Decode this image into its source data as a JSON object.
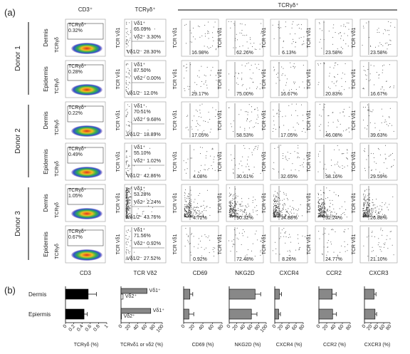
{
  "panel_labels": [
    "(a)",
    "(b)"
  ],
  "headers": {
    "cd3": "CD3⁺",
    "gd": "TCRγδ⁺",
    "group": "TCRγδ⁺"
  },
  "donors": [
    "Donor 1",
    "Donor 2",
    "Donor 3"
  ],
  "y_labels": {
    "gd": "TCRγδ",
    "vd1": "TCR Vδ1"
  },
  "rows": [
    {
      "tissue": "Dermis",
      "gate": "TCRγδ⁺",
      "gate_pct": "0.32%",
      "vd1": "Vδ1⁺",
      "vd1_pct": "65.09%",
      "vd2": "Vδ2⁺ 3.30%",
      "vdn": "Vδ1/2⁻ 28.30%",
      "markers": [
        "16.98%",
        "62.26%",
        "6.13%",
        "23.58%",
        "23.58%"
      ]
    },
    {
      "tissue": "Epidermis",
      "gate": "TCRγδ⁺",
      "gate_pct": "0.28%",
      "vd1": "Vδ1⁺",
      "vd1_pct": "87.50%",
      "vd2": "Vδ2⁺ 0.00%",
      "vdn": "Vδ1/2⁻ 12.0%",
      "markers": [
        "29.17%",
        "75.00%",
        "16.67%",
        "20.83%",
        "16.67%"
      ]
    },
    {
      "tissue": "Dermis",
      "gate": "TCRγδ⁺",
      "gate_pct": "0.22%",
      "vd1": "Vδ1⁺",
      "vd1_pct": "70.51%",
      "vd2": "Vδ2⁺ 9.68%",
      "vdn": "Vδ1/2⁻ 18.89%",
      "markers": [
        "17.05%",
        "58.53%",
        "17.05%",
        "46.08%",
        "39.63%"
      ]
    },
    {
      "tissue": "Epidermis",
      "gate": "TCRγδ⁺",
      "gate_pct": "0.49%",
      "vd1": "Vδ1⁺",
      "vd1_pct": "55.10%",
      "vd2": "Vδ2⁺ 1.02%",
      "vdn": "Vδ1/2⁻ 42.86%",
      "markers": [
        "4.08%",
        "30.61%",
        "32.65%",
        "58.16%",
        "29.59%"
      ]
    },
    {
      "tissue": "Dermis",
      "gate": "TCRγδ⁺",
      "gate_pct": "1.05%",
      "vd1": "Vδ1⁺",
      "vd1_pct": "53.28%",
      "vd2": "Vδ2⁺ 2.24%",
      "vdn": "Vδ1/2⁻ 43.76%",
      "markers": [
        "4.72%",
        "90.32%",
        "14.88%",
        "32.24%",
        "26.88%"
      ]
    },
    {
      "tissue": "Epidermis",
      "gate": "TCRγδ⁺",
      "gate_pct": "0.67%",
      "vd1": "Vδ1⁺",
      "vd1_pct": "71.56%",
      "vd2": "Vδ2⁺ 0.92%",
      "vdn": "Vδ1/2⁻ 27.52%",
      "markers": [
        "0.92%",
        "72.48%",
        "8.26%",
        "24.77%",
        "21.10%"
      ]
    }
  ],
  "x_labels": [
    "CD3",
    "TCR Vδ2",
    "CD69",
    "NKG2D",
    "CXCR4",
    "CCR2",
    "CXCR3"
  ],
  "b_rows": [
    "Dermis",
    "Epiermis"
  ],
  "chart_data": [
    {
      "type": "bar",
      "xlabel": "TCRγδ (%)",
      "xlim": [
        0,
        1
      ],
      "xticks": [
        0,
        0.2,
        0.4,
        0.6,
        0.8,
        1
      ],
      "color": "#000000",
      "values": [
        0.55,
        0.45
      ],
      "errors": [
        0.2,
        0.08
      ]
    },
    {
      "type": "grouped",
      "xlabel": "TCRvδ1 or vδ2 (%)",
      "xlim": [
        0,
        100
      ],
      "xticks": [
        0,
        20,
        40,
        60,
        80,
        100
      ],
      "series": [
        {
          "name": "Vδ1⁺",
          "color": "#888888",
          "values": [
            63,
            72
          ]
        },
        {
          "name": "Vδ2⁺",
          "color": "#ffffff",
          "values": [
            5,
            1
          ]
        }
      ]
    },
    {
      "type": "bar",
      "xlabel": "CD69 (%)",
      "xlim": [
        0,
        80
      ],
      "xticks": [
        0,
        20,
        40,
        60,
        80
      ],
      "color": "#888888",
      "values": [
        13,
        11
      ],
      "errors": [
        6,
        10
      ]
    },
    {
      "type": "bar",
      "xlabel": "NKG2D (%)",
      "xlim": [
        0,
        100
      ],
      "xticks": [
        0,
        20,
        40,
        60,
        80,
        100
      ],
      "color": "#888888",
      "values": [
        70,
        60
      ],
      "errors": [
        15,
        15
      ]
    },
    {
      "type": "bar",
      "xlabel": "CXCR4 (%)",
      "xlim": [
        0,
        80
      ],
      "xticks": [
        0,
        20,
        40,
        60,
        80
      ],
      "color": "#888888",
      "values": [
        13,
        11
      ],
      "errors": [
        6,
        5
      ]
    },
    {
      "type": "bar",
      "xlabel": "CCR2 (%)",
      "xlim": [
        0,
        80
      ],
      "xticks": [
        0,
        20,
        40,
        60,
        80
      ],
      "color": "#888888",
      "values": [
        34,
        35
      ],
      "errors": [
        10,
        10
      ]
    },
    {
      "type": "bar",
      "xlabel": "CXCR3 (%)",
      "xlim": [
        0,
        80
      ],
      "xticks": [
        0,
        20,
        40,
        60,
        80
      ],
      "color": "#888888",
      "values": [
        30,
        33
      ],
      "errors": [
        6,
        5
      ]
    }
  ]
}
